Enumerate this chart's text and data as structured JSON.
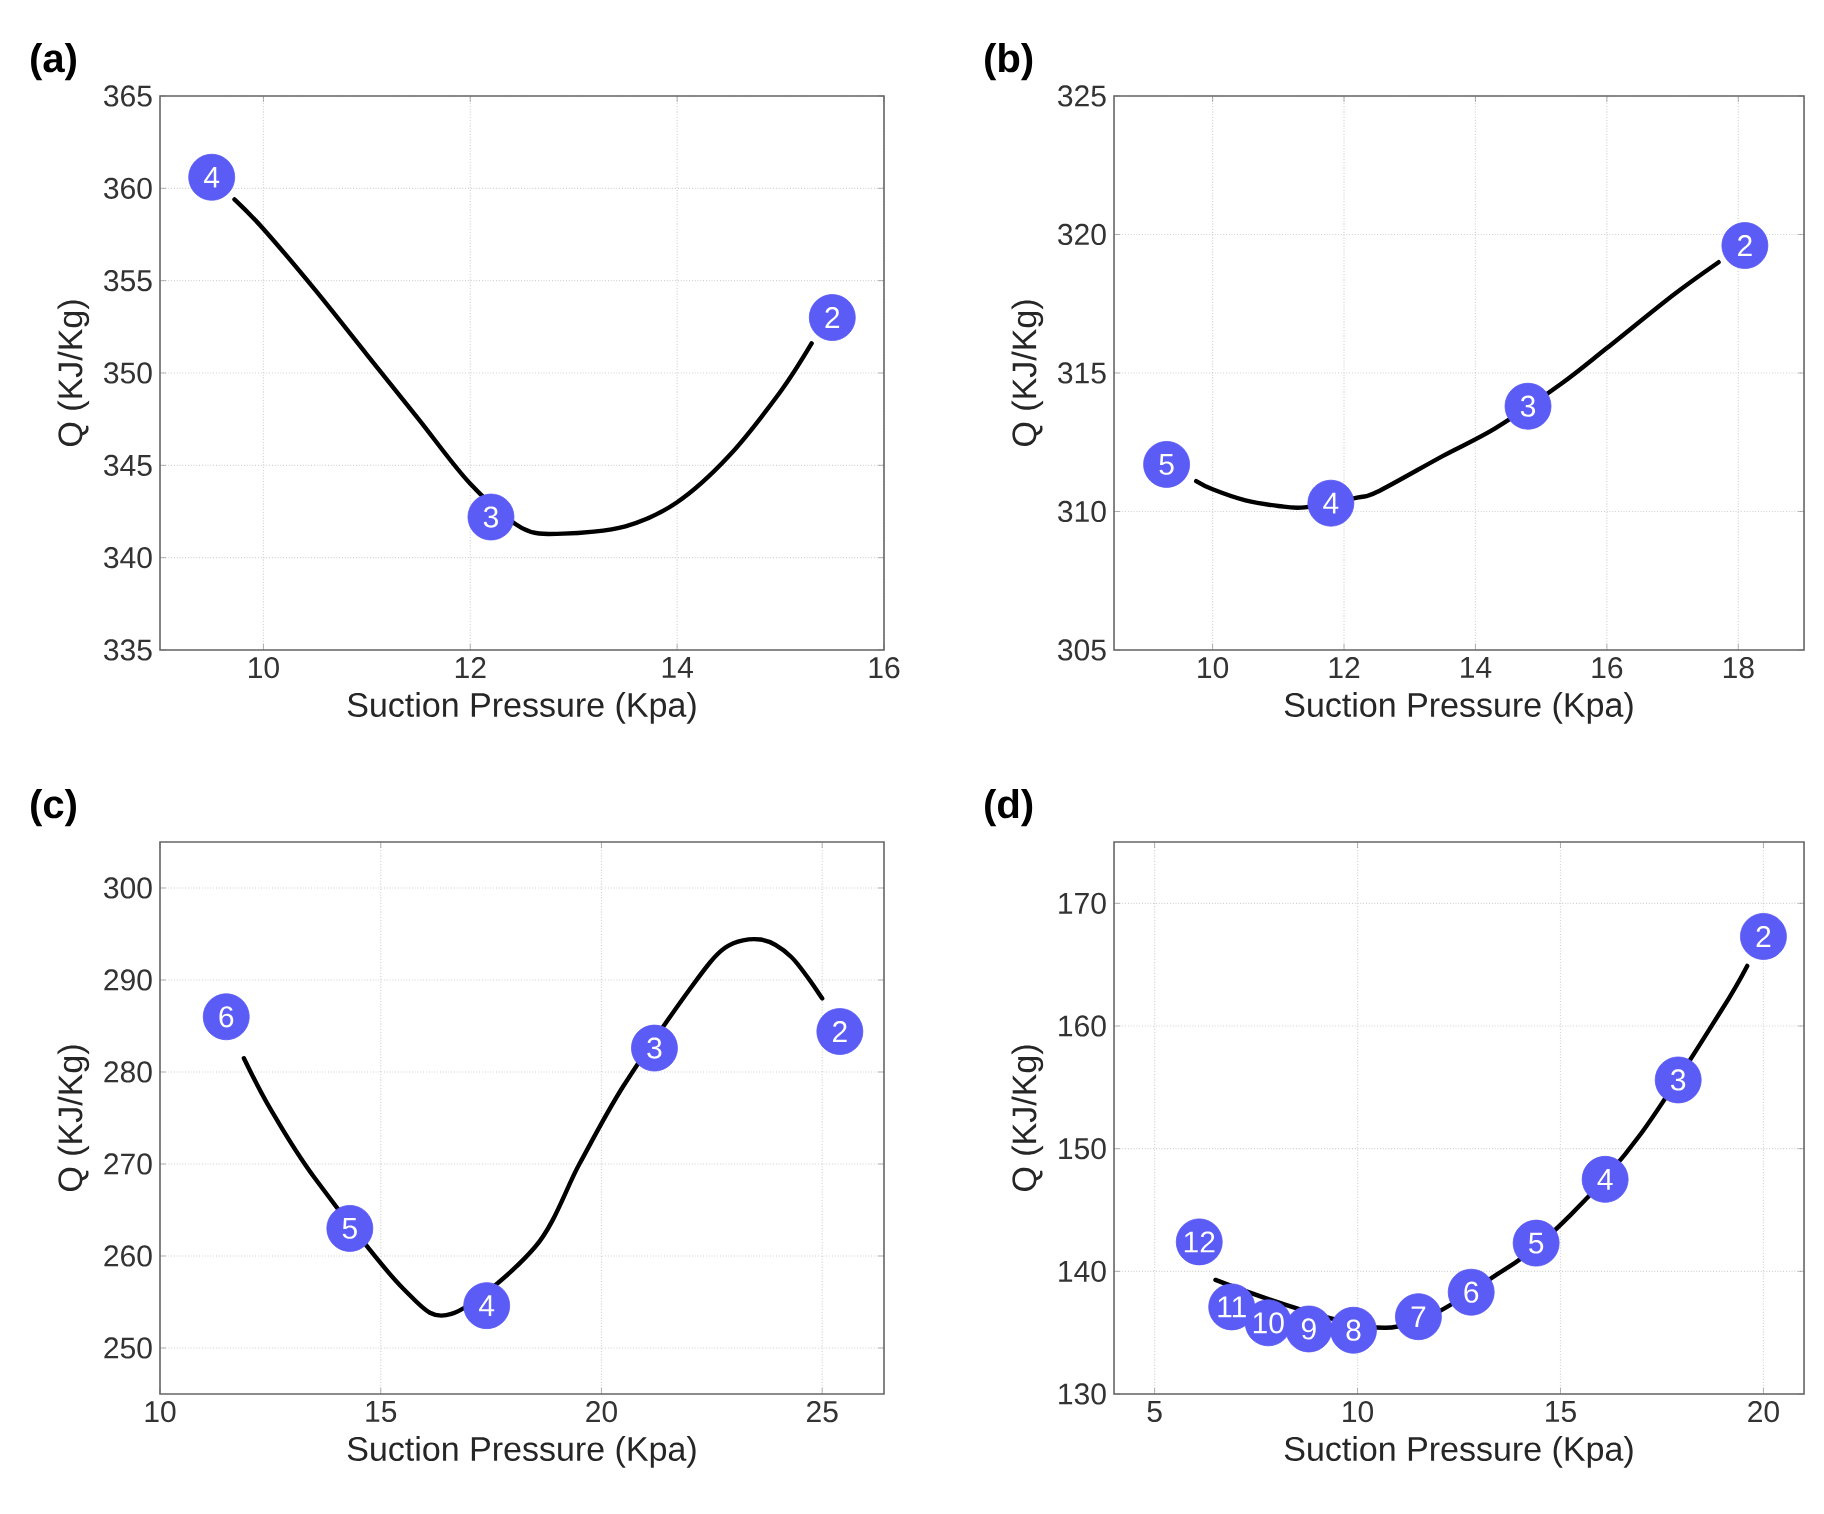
{
  "chart_data": [
    {
      "type": "line",
      "title": "(a)",
      "xlabel": "Suction Pressure (Kpa)",
      "ylabel": "Q (KJ/Kg)",
      "xlim": [
        9,
        16
      ],
      "xticks": [
        10,
        12,
        14,
        16
      ],
      "ylim": [
        335,
        365
      ],
      "yticks": [
        335,
        340,
        345,
        350,
        355,
        360,
        365
      ],
      "grid": true,
      "series": [
        {
          "color": "#000000",
          "x": [
            9.72,
            10,
            10.5,
            11,
            11.5,
            12,
            12.5,
            12.9,
            13.5,
            14,
            14.5,
            15,
            15.3
          ],
          "values": [
            359.4,
            357.8,
            354.5,
            351,
            347.5,
            344,
            341.6,
            341.3,
            341.7,
            343,
            345.5,
            349,
            351.6
          ]
        },
        {
          "type": "scatter",
          "marker": "circle",
          "color": "#5b5bf5",
          "x": [
            9.5,
            12.2,
            15.5
          ],
          "values": [
            360.6,
            342.2,
            353
          ]
        }
      ],
      "annotations": [
        {
          "text": "4",
          "x": 9.5,
          "y": 360.6
        },
        {
          "text": "3",
          "x": 12.2,
          "y": 342.2
        },
        {
          "text": "2",
          "x": 15.5,
          "y": 353
        }
      ]
    },
    {
      "type": "line",
      "title": "(b)",
      "xlabel": "Suction Pressure (Kpa)",
      "ylabel": "Q (KJ/Kg)",
      "xlim": [
        8.5,
        19
      ],
      "xticks": [
        10,
        12,
        14,
        16,
        18
      ],
      "ylim": [
        305,
        325
      ],
      "yticks": [
        305,
        310,
        315,
        320,
        325
      ],
      "grid": true,
      "series": [
        {
          "color": "#000000",
          "x": [
            9.75,
            10,
            10.5,
            11,
            11.4,
            12.2,
            12.5,
            13.5,
            14.3,
            15.3,
            16,
            17,
            17.7
          ],
          "values": [
            311.1,
            310.8,
            310.4,
            310.2,
            310.15,
            310.5,
            310.7,
            312,
            313,
            314.6,
            315.9,
            317.8,
            319.0
          ]
        },
        {
          "type": "scatter",
          "marker": "circle",
          "color": "#5b5bf5",
          "x": [
            9.3,
            11.8,
            14.8,
            18.1
          ],
          "values": [
            311.7,
            310.3,
            313.8,
            319.6
          ]
        }
      ],
      "annotations": [
        {
          "text": "5",
          "x": 9.3,
          "y": 311.7
        },
        {
          "text": "4",
          "x": 11.8,
          "y": 310.3
        },
        {
          "text": "3",
          "x": 14.8,
          "y": 313.8
        },
        {
          "text": "2",
          "x": 18.1,
          "y": 319.6
        }
      ]
    },
    {
      "type": "line",
      "title": "(c)",
      "xlabel": "Suction Pressure (Kpa)",
      "ylabel": "Q (KJ/Kg)",
      "xlim": [
        10,
        26.4
      ],
      "xticks": [
        10,
        15,
        20,
        25
      ],
      "ylim": [
        245,
        305
      ],
      "yticks": [
        250,
        260,
        270,
        280,
        290,
        300
      ],
      "grid": true,
      "series": [
        {
          "color": "#000000",
          "x": [
            11.9,
            12.5,
            13.5,
            15.5,
            16.6,
            18.5,
            19.5,
            20.5,
            22,
            22.8,
            23.6,
            24.3,
            25
          ],
          "values": [
            281.5,
            276,
            268.5,
            256.5,
            253.7,
            261,
            270,
            278.5,
            289,
            293.5,
            294.4,
            292.5,
            288
          ]
        },
        {
          "type": "scatter",
          "marker": "circle",
          "color": "#5b5bf5",
          "x": [
            11.5,
            14.3,
            17.4,
            21.2,
            25.4
          ],
          "values": [
            286,
            263,
            254.6,
            282.6,
            284.4
          ]
        }
      ],
      "annotations": [
        {
          "text": "6",
          "x": 11.5,
          "y": 286
        },
        {
          "text": "5",
          "x": 14.3,
          "y": 263
        },
        {
          "text": "4",
          "x": 17.4,
          "y": 254.6
        },
        {
          "text": "3",
          "x": 21.2,
          "y": 282.6
        },
        {
          "text": "2",
          "x": 25.4,
          "y": 284.4
        }
      ]
    },
    {
      "type": "line",
      "title": "(d)",
      "xlabel": "Suction Pressure (Kpa)",
      "ylabel": "Q (KJ/Kg)",
      "xlim": [
        4,
        21
      ],
      "xticks": [
        5,
        10,
        15,
        20
      ],
      "ylim": [
        130,
        175
      ],
      "yticks": [
        130,
        140,
        150,
        160,
        170
      ],
      "grid": true,
      "series": [
        {
          "color": "#000000",
          "x": [
            6.5,
            10.7,
            13.6,
            15.25,
            17,
            18.95,
            19.6
          ],
          "values": [
            139.3,
            135.4,
            140.1,
            144.6,
            151.3,
            161.2,
            164.9
          ]
        },
        {
          "type": "scatter",
          "marker": "circle",
          "color": "#5b5bf5",
          "x": [
            6.1,
            6.9,
            7.8,
            8.8,
            9.9,
            11.5,
            12.8,
            14.4,
            16.1,
            17.9,
            20
          ],
          "values": [
            142.4,
            137.1,
            135.8,
            135.3,
            135.2,
            136.3,
            138.3,
            142.3,
            147.5,
            155.6,
            167.3
          ]
        }
      ],
      "annotations": [
        {
          "text": "12",
          "x": 6.1,
          "y": 142.4
        },
        {
          "text": "11",
          "x": 6.9,
          "y": 137.1
        },
        {
          "text": "10",
          "x": 7.8,
          "y": 135.8
        },
        {
          "text": "9",
          "x": 8.8,
          "y": 135.3
        },
        {
          "text": "8",
          "x": 9.9,
          "y": 135.2
        },
        {
          "text": "7",
          "x": 11.5,
          "y": 136.3
        },
        {
          "text": "6",
          "x": 12.8,
          "y": 138.3
        },
        {
          "text": "5",
          "x": 14.4,
          "y": 142.3
        },
        {
          "text": "4",
          "x": 16.1,
          "y": 147.5
        },
        {
          "text": "3",
          "x": 17.9,
          "y": 155.6
        },
        {
          "text": "2",
          "x": 20,
          "y": 167.3
        }
      ]
    }
  ]
}
